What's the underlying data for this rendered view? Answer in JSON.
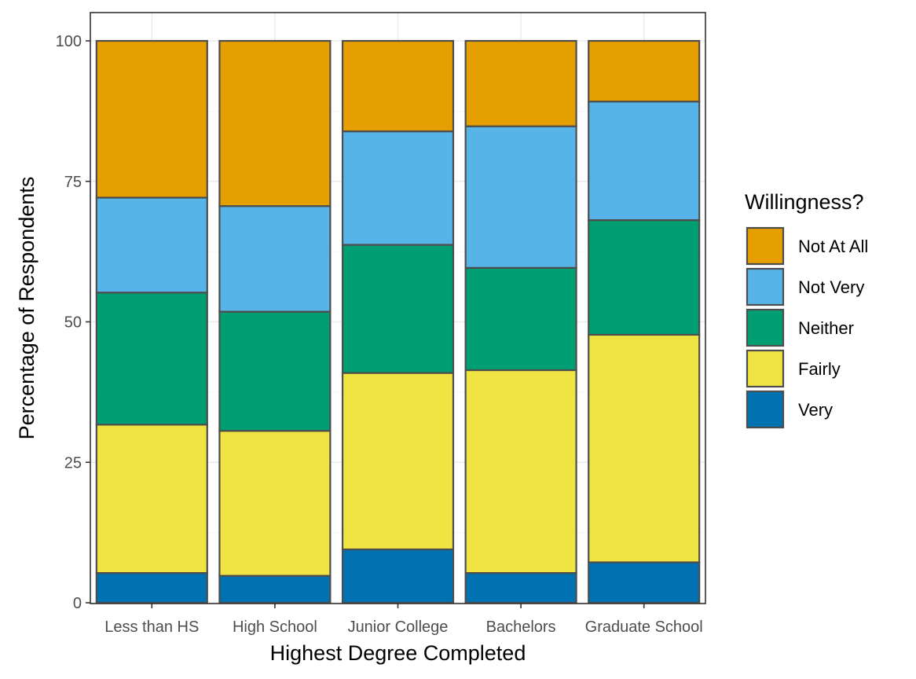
{
  "chart_data": {
    "type": "bar",
    "stacked": true,
    "xlabel": "Highest Degree Completed",
    "ylabel": "Percentage of Respondents",
    "ylim": [
      0,
      100
    ],
    "yticks": [
      0,
      25,
      50,
      75,
      100
    ],
    "categories": [
      "Less than HS",
      "High School",
      "Junior College",
      "Bachelors",
      "Graduate School"
    ],
    "legend": {
      "title": "Willingness?",
      "position": "right",
      "items": [
        "Not At All",
        "Not Very",
        "Neither",
        "Fairly",
        "Very"
      ]
    },
    "series": [
      {
        "name": "Very",
        "color": "#0072B2",
        "values": [
          5.3,
          4.8,
          9.5,
          5.3,
          7.2
        ]
      },
      {
        "name": "Fairly",
        "color": "#F0E442",
        "values": [
          26.4,
          25.8,
          31.4,
          36.1,
          40.5
        ]
      },
      {
        "name": "Neither",
        "color": "#009E73",
        "values": [
          23.5,
          21.2,
          22.8,
          18.2,
          20.4
        ]
      },
      {
        "name": "Not Very",
        "color": "#56B4E9",
        "values": [
          16.9,
          18.8,
          20.2,
          25.2,
          21.1
        ]
      },
      {
        "name": "Not At All",
        "color": "#E69F00",
        "values": [
          27.9,
          29.4,
          16.1,
          15.2,
          10.8
        ]
      }
    ],
    "grid": true
  }
}
